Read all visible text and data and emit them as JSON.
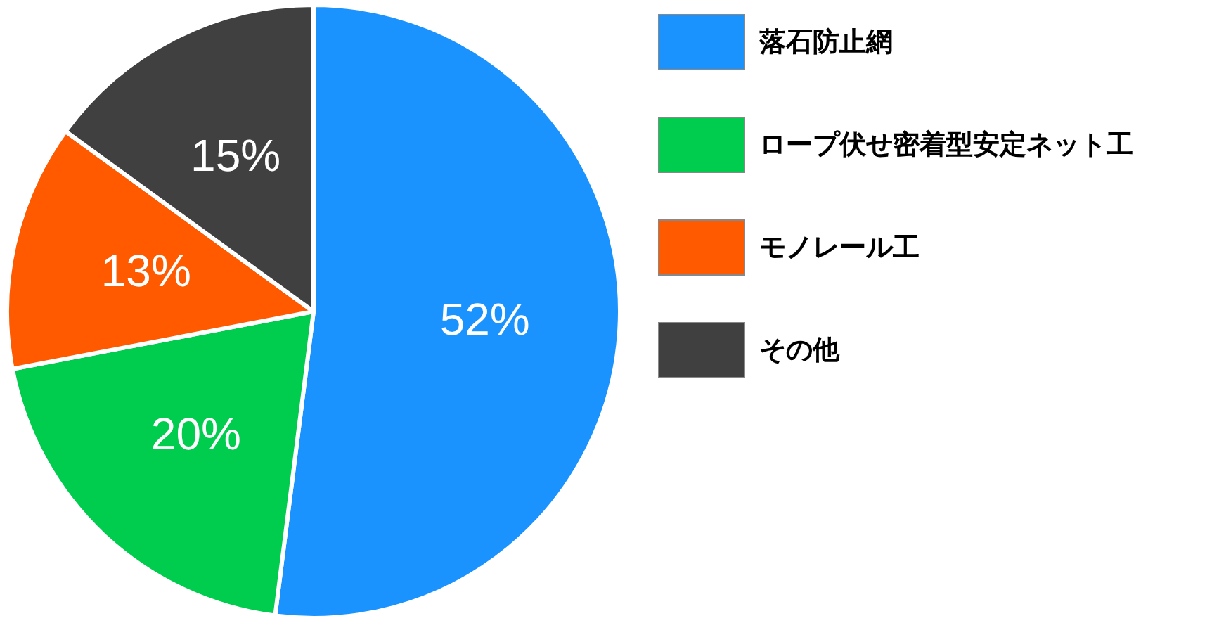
{
  "chart_data": {
    "type": "pie",
    "categories": [
      "落石防止網",
      "ロープ伏せ密着型安定ネット工",
      "モノレール工",
      "その他"
    ],
    "values": [
      52,
      20,
      13,
      15
    ],
    "colors": [
      "#1a93ff",
      "#00cc4e",
      "#ff5a00",
      "#404040"
    ],
    "value_labels": [
      "52%",
      "20%",
      "13%",
      "15%"
    ],
    "legend": "right"
  }
}
